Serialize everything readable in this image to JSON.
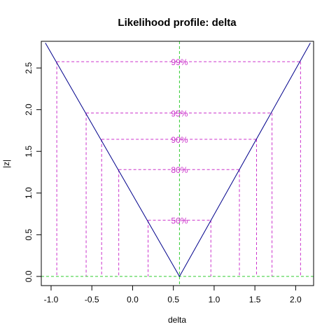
{
  "chart_data": {
    "type": "line",
    "title": "Likelihood profile: delta",
    "xlabel": "delta",
    "ylabel": "|z|",
    "xlim": [
      -1.12,
      2.22
    ],
    "ylim": [
      -0.11,
      2.82
    ],
    "x_ticks": [
      -1.0,
      -0.5,
      0.0,
      0.5,
      1.0,
      1.5,
      2.0
    ],
    "x_tick_labels": [
      "-1.0",
      "-0.5",
      "0.0",
      "0.5",
      "1.0",
      "1.5",
      "2.0"
    ],
    "y_ticks": [
      0.0,
      0.5,
      1.0,
      1.5,
      2.0,
      2.5
    ],
    "y_tick_labels": [
      "0.0",
      "0.5",
      "1.0",
      "1.5",
      "2.0",
      "2.5"
    ],
    "profile": {
      "x": [
        -1.07,
        0.575,
        2.18
      ],
      "y": [
        2.8,
        0.0,
        2.8
      ],
      "color": "#00008b"
    },
    "estimate": {
      "x": 0.575,
      "color": "#32cd32"
    },
    "levels": [
      {
        "label": "99%",
        "z": 2.576,
        "lower": -0.93,
        "upper": 2.06
      },
      {
        "label": "95%",
        "z": 1.96,
        "lower": -0.57,
        "upper": 1.71
      },
      {
        "label": "90%",
        "z": 1.645,
        "lower": -0.38,
        "upper": 1.52
      },
      {
        "label": "80%",
        "z": 1.282,
        "lower": -0.17,
        "upper": 1.31
      },
      {
        "label": "50%",
        "z": 0.674,
        "lower": 0.19,
        "upper": 0.96
      }
    ],
    "level_color": "#cc33cc"
  }
}
